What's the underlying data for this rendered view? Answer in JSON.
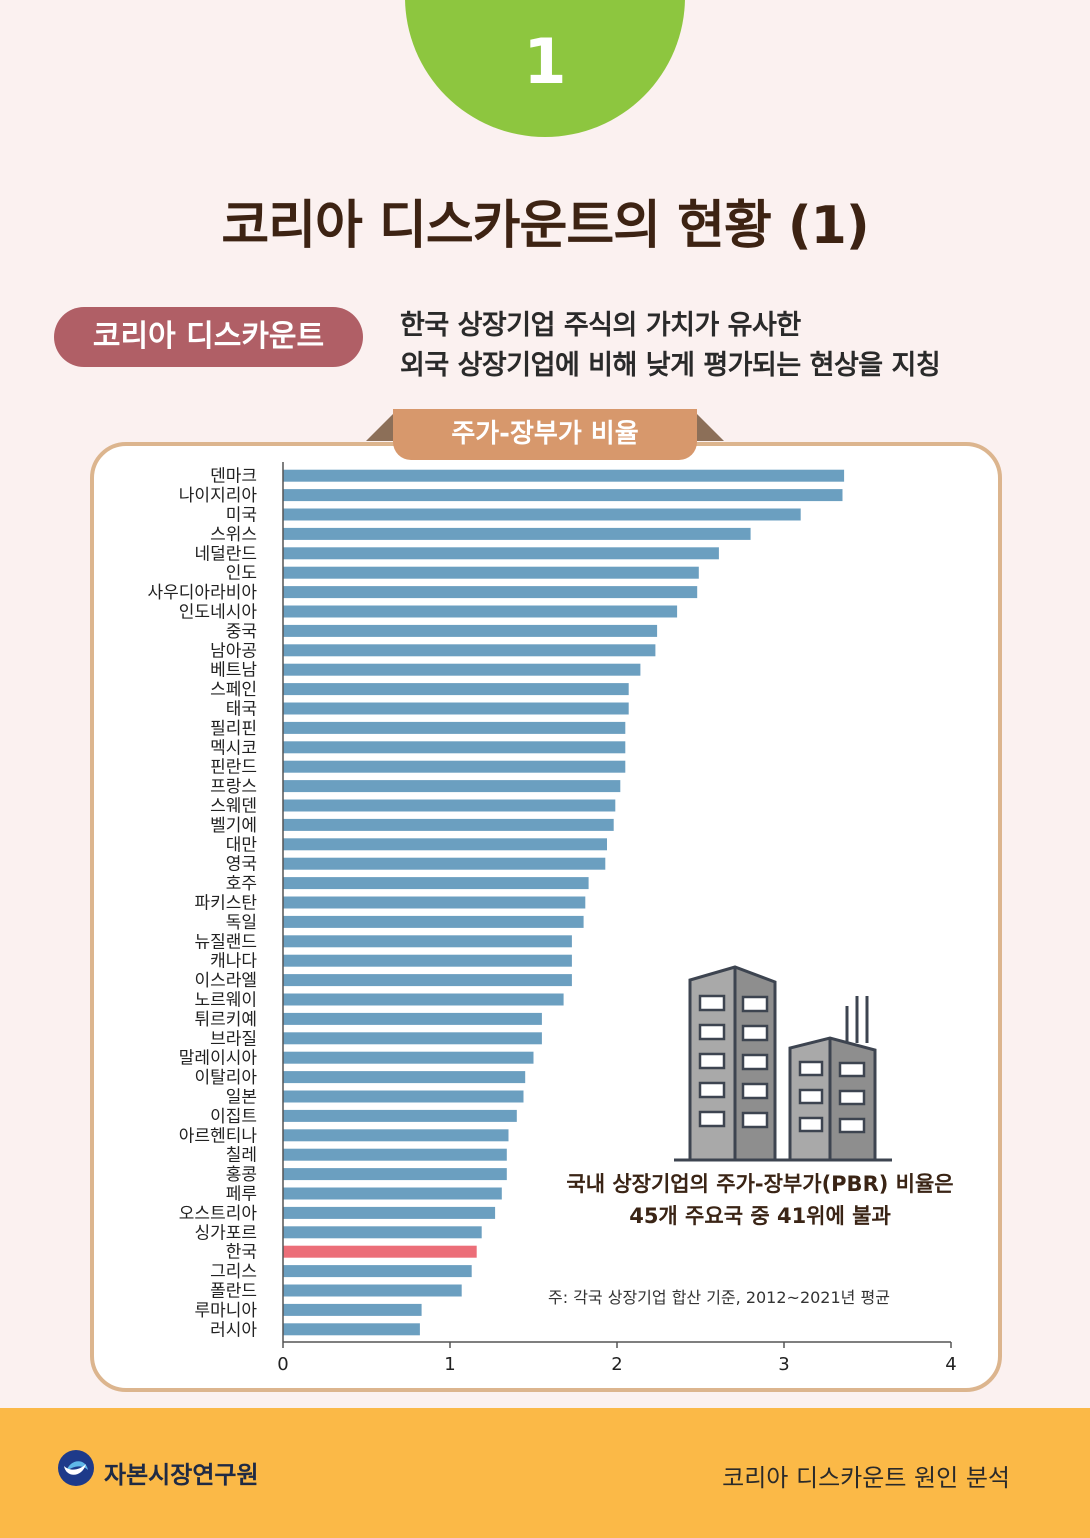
{
  "page": {
    "number": "1",
    "title": "코리아 디스카운트의 현황 (1)",
    "definition": {
      "label": "코리아 디스카운트",
      "line1": "한국 상장기업 주식의 가치가 유사한",
      "line2": "외국 상장기업에 비해 낮게 평가되는 현상을 지칭"
    },
    "chart_tab": "주가-장부가 비율",
    "note_main_line1": "국내 상장기업의 주가-장부가(PBR) 비율은",
    "note_main_line2": "45개 주요국 중 41위에 불과",
    "note_footnote": "주: 각국 상장기업 합산 기준, 2012~2021년 평균",
    "footer": {
      "org_name": "자본시장연구원",
      "series_title": "코리아 디스카운트 원인 분석"
    }
  },
  "colors": {
    "bar": "#6b9fc0",
    "highlight": "#ec6e78",
    "accent_green": "#8dc63f",
    "footer": "#fbb947"
  },
  "chart_data": {
    "type": "bar",
    "orientation": "horizontal",
    "title": "주가-장부가 비율",
    "categories": [
      "덴마크",
      "나이지리아",
      "미국",
      "스위스",
      "네덜란드",
      "인도",
      "사우디아라비아",
      "인도네시아",
      "중국",
      "남아공",
      "베트남",
      "스페인",
      "태국",
      "필리핀",
      "멕시코",
      "핀란드",
      "프랑스",
      "스웨덴",
      "벨기에",
      "대만",
      "영국",
      "호주",
      "파키스탄",
      "독일",
      "뉴질랜드",
      "캐나다",
      "이스라엘",
      "노르웨이",
      "튀르키예",
      "브라질",
      "말레이시아",
      "이탈리아",
      "일본",
      "이집트",
      "아르헨티나",
      "칠레",
      "홍콩",
      "페루",
      "오스트리아",
      "싱가포르",
      "한국",
      "그리스",
      "폴란드",
      "루마니아",
      "러시아"
    ],
    "values": [
      3.36,
      3.35,
      3.1,
      2.8,
      2.61,
      2.49,
      2.48,
      2.36,
      2.24,
      2.23,
      2.14,
      2.07,
      2.07,
      2.05,
      2.05,
      2.05,
      2.02,
      1.99,
      1.98,
      1.94,
      1.93,
      1.83,
      1.81,
      1.8,
      1.73,
      1.73,
      1.73,
      1.68,
      1.55,
      1.55,
      1.5,
      1.45,
      1.44,
      1.4,
      1.35,
      1.34,
      1.34,
      1.31,
      1.27,
      1.19,
      1.16,
      1.13,
      1.07,
      0.83,
      0.82
    ],
    "highlight_category": "한국",
    "xlim": [
      0,
      4
    ],
    "xticks": [
      "0",
      "1",
      "2",
      "3",
      "4"
    ],
    "xlabel": "",
    "ylabel": ""
  }
}
